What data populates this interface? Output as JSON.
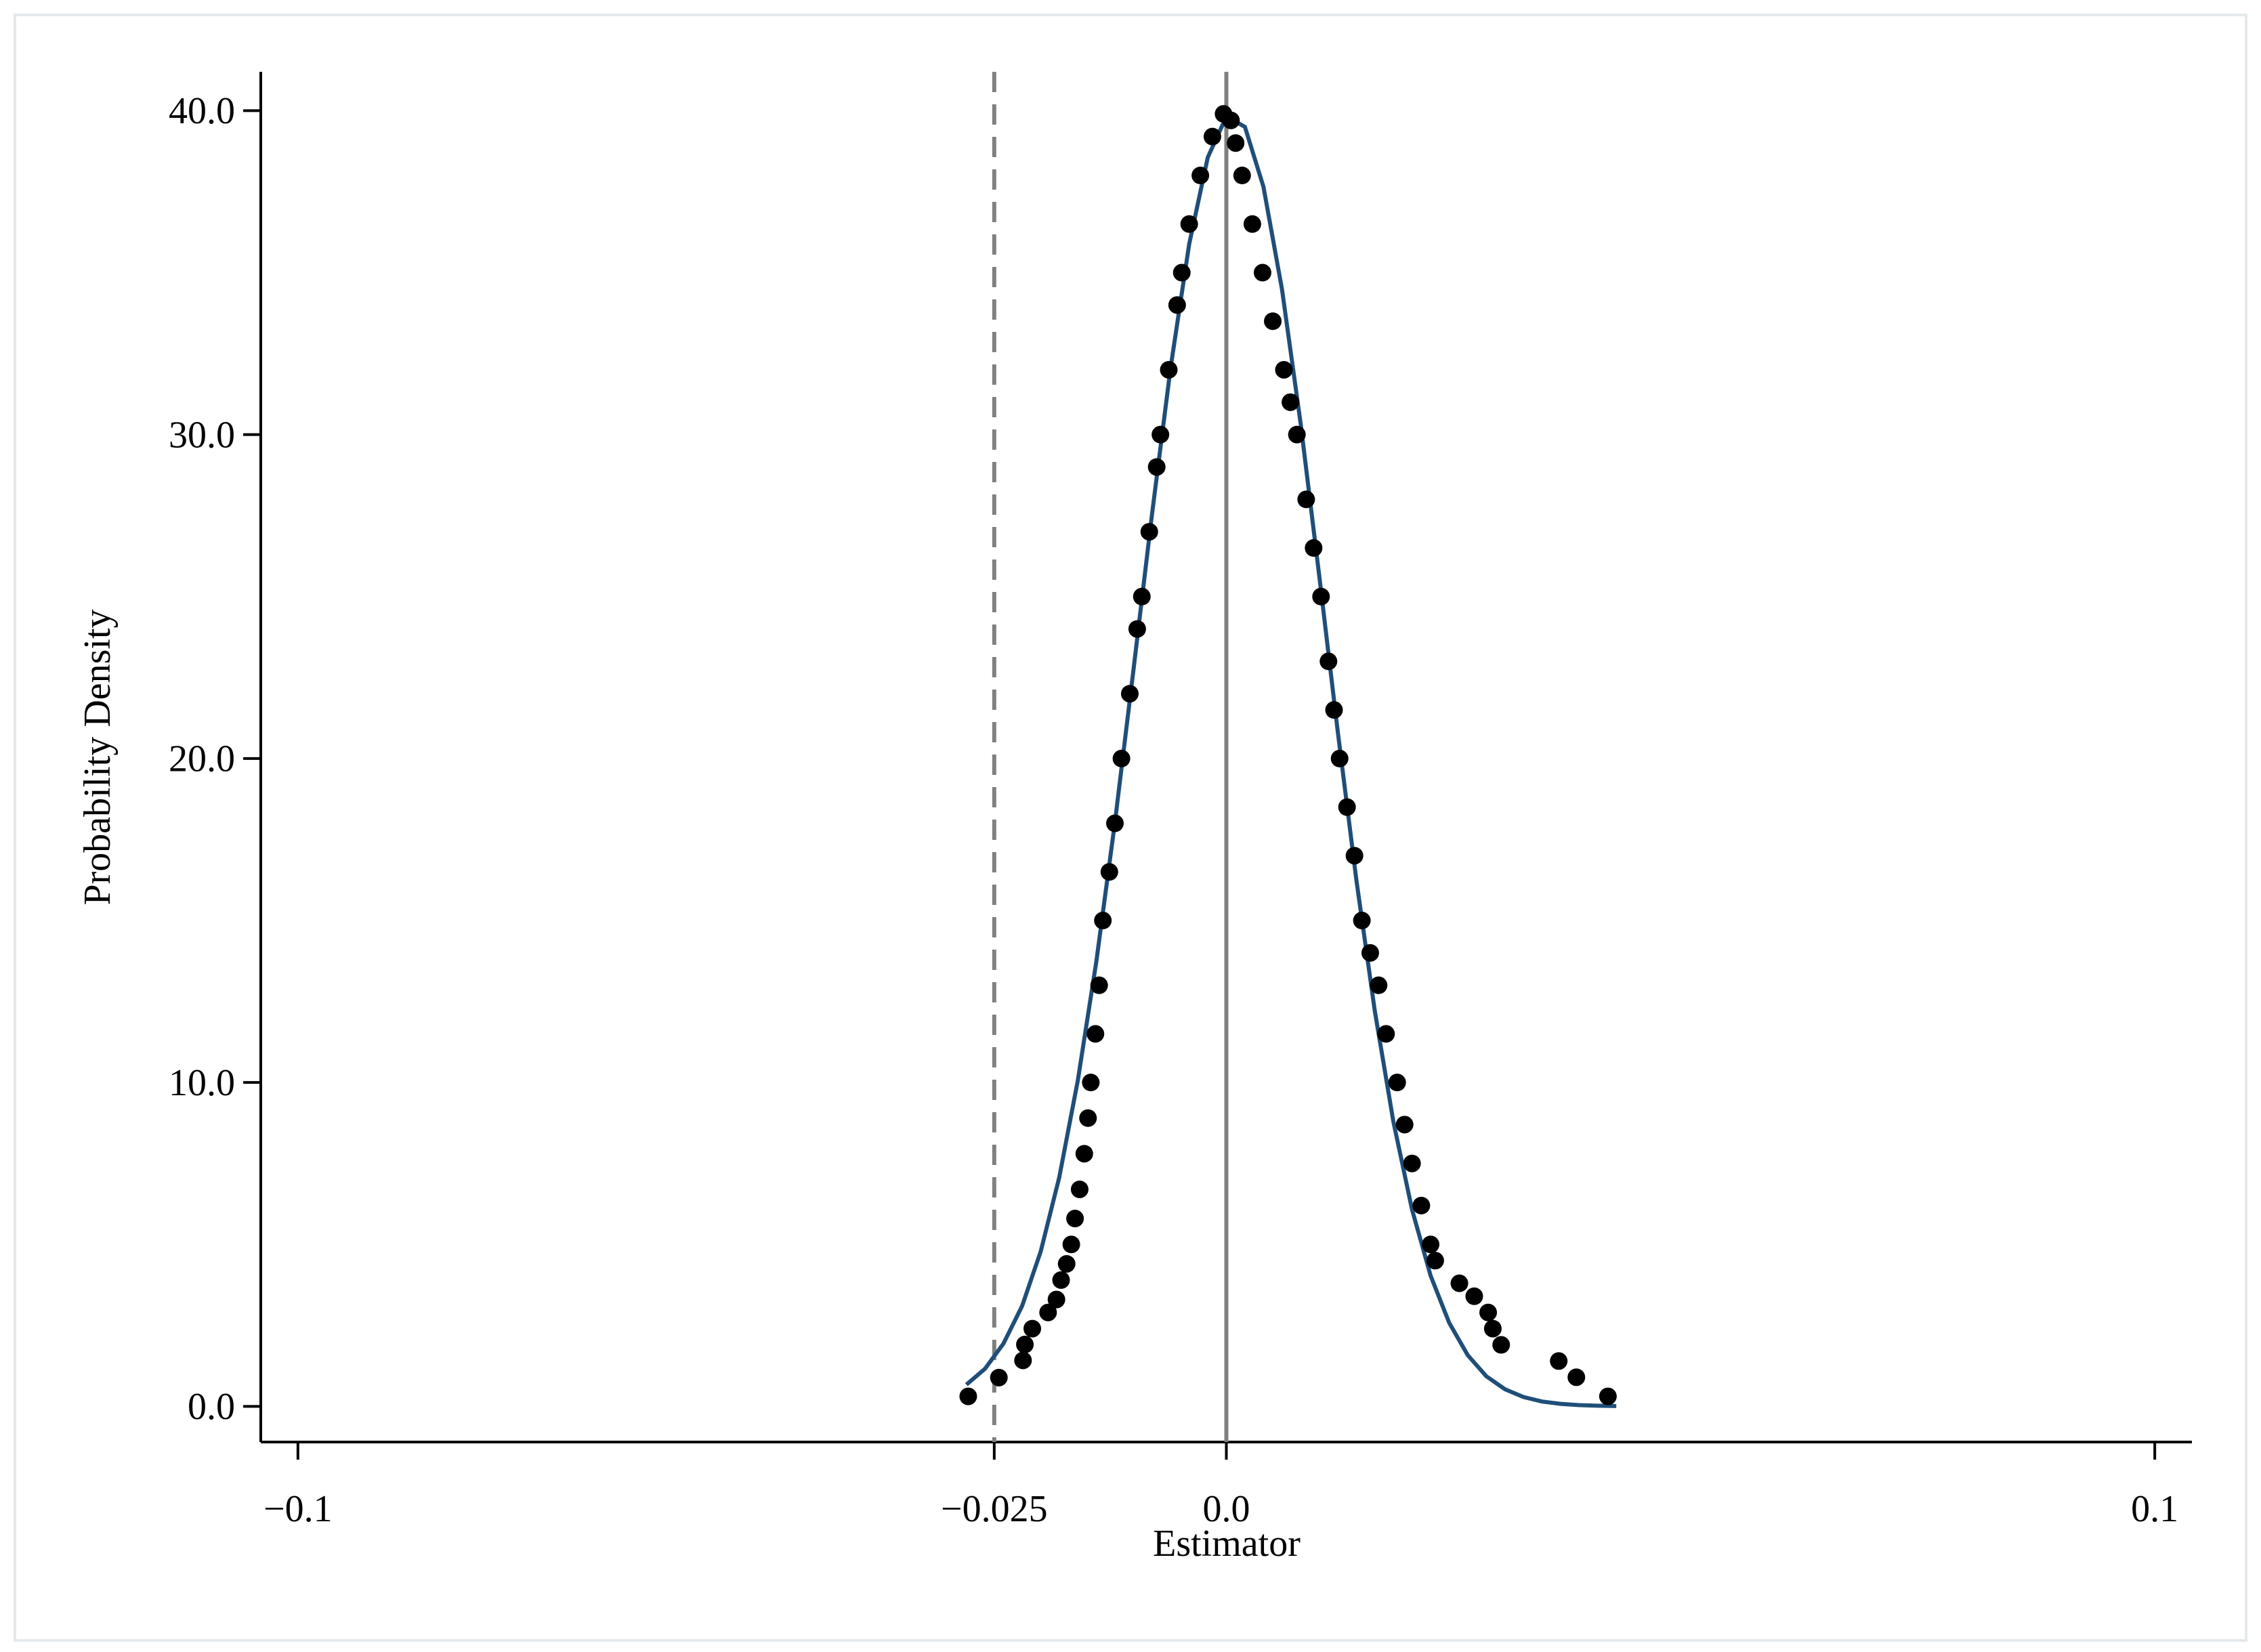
{
  "chart_data": {
    "type": "scatter",
    "xlabel": "Estimator",
    "ylabel": "Probability Density",
    "xlim": [
      -0.104,
      0.104
    ],
    "ylim": [
      -1.1,
      41.2
    ],
    "xticks": [
      {
        "value": -0.1,
        "label": "−0.1"
      },
      {
        "value": -0.025,
        "label": "−0.025"
      },
      {
        "value": 0,
        "label": "0.0"
      },
      0.1
    ],
    "yticks": [
      {
        "value": 0,
        "label": "0.0"
      },
      {
        "value": 10,
        "label": "10.0"
      },
      {
        "value": 20,
        "label": "20.0"
      },
      {
        "value": 30,
        "label": "30.0"
      },
      {
        "value": 40,
        "label": "40.0"
      }
    ],
    "reference_lines": [
      {
        "value": -0.025,
        "dashed": true,
        "color": "#808080"
      },
      {
        "value": 0,
        "dashed": false,
        "color": "#808080"
      }
    ],
    "series": [
      {
        "type": "scatter",
        "color": "#000000",
        "x": [
          -0.0278,
          -0.0245,
          -0.0219,
          -0.0217,
          -0.0209,
          -0.0192,
          -0.0183,
          -0.0178,
          -0.0172,
          -0.0167,
          -0.0163,
          -0.0158,
          -0.0153,
          -0.0149,
          -0.0146,
          -0.0141,
          -0.0137,
          -0.0133,
          -0.0126,
          -0.012,
          -0.0113,
          -0.0104,
          -0.0096,
          -0.0091,
          -0.0083,
          -0.0075,
          -0.0071,
          -0.0062,
          -0.0053,
          -0.0048,
          -0.004,
          -0.0028,
          -0.0015,
          -0.0003,
          0.0005,
          0.001,
          0.0017,
          0.0028,
          0.0039,
          0.005,
          0.0062,
          0.0069,
          0.0076,
          0.0086,
          0.0094,
          0.0102,
          0.011,
          0.0116,
          0.0122,
          0.013,
          0.0138,
          0.0146,
          0.0155,
          0.0164,
          0.0172,
          0.0184,
          0.0192,
          0.02,
          0.021,
          0.022,
          0.0225,
          0.0251,
          0.0267,
          0.0282,
          0.0287,
          0.0296,
          0.0358,
          0.0377,
          0.0411
        ],
        "values": [
          0.31,
          0.89,
          1.42,
          1.91,
          2.4,
          2.9,
          3.3,
          3.9,
          4.4,
          5.0,
          5.8,
          6.7,
          7.8,
          8.9,
          10,
          11.5,
          13,
          15,
          16.5,
          18,
          20,
          22,
          24,
          25,
          27,
          29,
          30,
          32,
          34,
          35,
          36.5,
          38,
          39.2,
          39.9,
          39.7,
          39,
          38,
          36.5,
          35,
          33.5,
          32,
          31,
          30,
          28,
          26.5,
          25,
          23,
          21.5,
          20,
          18.5,
          17,
          15,
          14,
          13,
          11.5,
          10,
          8.7,
          7.5,
          6.2,
          5.0,
          4.5,
          3.8,
          3.4,
          2.9,
          2.4,
          1.9,
          1.4,
          0.9,
          0.31
        ]
      },
      {
        "type": "line",
        "color": "#1f4e79",
        "x": [
          -0.028,
          -0.026,
          -0.024,
          -0.022,
          -0.02,
          -0.018,
          -0.016,
          -0.014,
          -0.012,
          -0.01,
          -0.008,
          -0.006,
          -0.004,
          -0.002,
          0,
          0.002,
          0.004,
          0.006,
          0.008,
          0.01,
          0.012,
          0.014,
          0.016,
          0.018,
          0.02,
          0.022,
          0.024,
          0.026,
          0.028,
          0.03,
          0.032,
          0.034,
          0.036,
          0.038,
          0.04,
          0.042
        ],
        "values": [
          0.67,
          1.16,
          1.94,
          3.1,
          4.78,
          7.07,
          10.06,
          13.74,
          18.03,
          22.74,
          27.55,
          32.08,
          35.89,
          38.56,
          39.82,
          39.5,
          37.65,
          34.48,
          30.34,
          25.65,
          20.83,
          16.26,
          12.19,
          8.78,
          6.08,
          4.04,
          2.58,
          1.58,
          0.93,
          0.53,
          0.29,
          0.15,
          0.08,
          0.04,
          0.02,
          0.01
        ]
      }
    ]
  }
}
